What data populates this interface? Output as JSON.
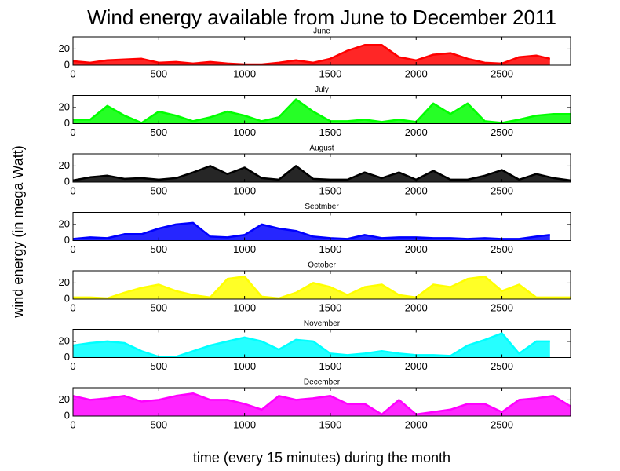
{
  "title": "Wind energy available from June to December 2011",
  "ylabel": "wind energy (in mega Watt)",
  "xlabel": "time (every 15 minutes) during the month",
  "chart_data": [
    {
      "type": "line",
      "title": "June",
      "xlim": [
        0,
        2900
      ],
      "xticks": [
        0,
        500,
        1000,
        1500,
        2000,
        2500
      ],
      "ylim": [
        0,
        35
      ],
      "yticks": [
        0,
        20
      ],
      "x": [
        0,
        100,
        200,
        300,
        400,
        500,
        600,
        700,
        800,
        900,
        1000,
        1100,
        1200,
        1300,
        1400,
        1500,
        1600,
        1700,
        1800,
        1900,
        2000,
        2100,
        2200,
        2300,
        2400,
        2500,
        2600,
        2700,
        2780
      ],
      "series": [
        {
          "color": "#ff0000",
          "values": [
            5,
            3,
            6,
            7,
            8,
            3,
            4,
            2,
            4,
            2,
            1,
            1,
            3,
            6,
            3,
            8,
            18,
            25,
            25,
            10,
            6,
            13,
            15,
            8,
            3,
            2,
            10,
            12,
            8
          ]
        }
      ]
    },
    {
      "type": "line",
      "title": "July",
      "xlim": [
        0,
        2900
      ],
      "xticks": [
        0,
        500,
        1000,
        1500,
        2000,
        2500
      ],
      "ylim": [
        0,
        35
      ],
      "yticks": [
        0,
        20
      ],
      "x": [
        0,
        100,
        200,
        300,
        400,
        500,
        600,
        700,
        800,
        900,
        1000,
        1100,
        1200,
        1300,
        1400,
        1500,
        1600,
        1700,
        1800,
        1900,
        2000,
        2100,
        2200,
        2300,
        2400,
        2500,
        2600,
        2700,
        2800,
        2900
      ],
      "series": [
        {
          "color": "#00ff00",
          "values": [
            5,
            5,
            22,
            10,
            1,
            15,
            10,
            3,
            8,
            15,
            10,
            3,
            8,
            30,
            15,
            3,
            3,
            5,
            2,
            5,
            2,
            25,
            12,
            25,
            3,
            1,
            5,
            10,
            12,
            12
          ]
        }
      ]
    },
    {
      "type": "line",
      "title": "August",
      "xlim": [
        0,
        2900
      ],
      "xticks": [
        0,
        500,
        1000,
        1500,
        2000,
        2500
      ],
      "ylim": [
        0,
        35
      ],
      "yticks": [
        0,
        20
      ],
      "x": [
        0,
        100,
        200,
        300,
        400,
        500,
        600,
        700,
        800,
        900,
        1000,
        1100,
        1200,
        1300,
        1400,
        1500,
        1600,
        1700,
        1800,
        1900,
        2000,
        2100,
        2200,
        2300,
        2400,
        2500,
        2600,
        2700,
        2800,
        2900
      ],
      "series": [
        {
          "color": "#000000",
          "values": [
            2,
            6,
            8,
            4,
            5,
            3,
            5,
            12,
            20,
            10,
            18,
            5,
            3,
            20,
            4,
            3,
            3,
            12,
            5,
            12,
            3,
            14,
            3,
            3,
            8,
            15,
            3,
            10,
            5,
            2
          ]
        }
      ]
    },
    {
      "type": "line",
      "title": "Septmber",
      "xlim": [
        0,
        2900
      ],
      "xticks": [
        0,
        500,
        1000,
        1500,
        2000,
        2500
      ],
      "ylim": [
        0,
        35
      ],
      "yticks": [
        0,
        20
      ],
      "x": [
        0,
        100,
        200,
        300,
        400,
        500,
        600,
        700,
        800,
        900,
        1000,
        1100,
        1200,
        1300,
        1400,
        1500,
        1600,
        1700,
        1800,
        1900,
        2000,
        2100,
        2200,
        2300,
        2400,
        2500,
        2600,
        2700,
        2780
      ],
      "series": [
        {
          "color": "#0000ff",
          "values": [
            2,
            4,
            3,
            8,
            8,
            15,
            20,
            22,
            5,
            4,
            7,
            20,
            15,
            12,
            5,
            3,
            2,
            7,
            3,
            4,
            4,
            3,
            3,
            2,
            3,
            2,
            2,
            5,
            7
          ]
        }
      ]
    },
    {
      "type": "line",
      "title": "October",
      "xlim": [
        0,
        2900
      ],
      "xticks": [
        0,
        500,
        1000,
        1500,
        2000,
        2500
      ],
      "ylim": [
        0,
        35
      ],
      "yticks": [
        0,
        20
      ],
      "x": [
        0,
        100,
        200,
        300,
        400,
        500,
        600,
        700,
        800,
        900,
        1000,
        1100,
        1200,
        1300,
        1400,
        1500,
        1600,
        1700,
        1800,
        1900,
        2000,
        2100,
        2200,
        2300,
        2400,
        2500,
        2600,
        2700,
        2800,
        2900
      ],
      "series": [
        {
          "color": "#ffff00",
          "values": [
            2,
            2,
            1,
            8,
            14,
            18,
            10,
            5,
            2,
            25,
            28,
            3,
            1,
            8,
            20,
            15,
            5,
            15,
            18,
            5,
            2,
            18,
            15,
            25,
            28,
            10,
            18,
            2,
            2,
            2
          ]
        }
      ]
    },
    {
      "type": "line",
      "title": "November",
      "xlim": [
        0,
        2900
      ],
      "xticks": [
        0,
        500,
        1000,
        1500,
        2000,
        2500
      ],
      "ylim": [
        0,
        35
      ],
      "yticks": [
        0,
        20
      ],
      "x": [
        0,
        100,
        200,
        300,
        400,
        500,
        600,
        700,
        800,
        900,
        1000,
        1100,
        1200,
        1300,
        1400,
        1500,
        1600,
        1700,
        1800,
        1900,
        2000,
        2100,
        2200,
        2300,
        2400,
        2500,
        2600,
        2700,
        2780
      ],
      "series": [
        {
          "color": "#00ffff",
          "values": [
            15,
            18,
            20,
            18,
            8,
            1,
            1,
            8,
            15,
            20,
            25,
            20,
            10,
            22,
            20,
            5,
            3,
            5,
            8,
            5,
            3,
            3,
            2,
            15,
            22,
            30,
            5,
            20,
            20
          ]
        }
      ]
    },
    {
      "type": "line",
      "title": "December",
      "xlim": [
        0,
        2900
      ],
      "xticks": [
        0,
        500,
        1000,
        1500,
        2000,
        2500
      ],
      "ylim": [
        0,
        35
      ],
      "yticks": [
        0,
        20
      ],
      "x": [
        0,
        100,
        200,
        300,
        400,
        500,
        600,
        700,
        800,
        900,
        1000,
        1100,
        1200,
        1300,
        1400,
        1500,
        1600,
        1700,
        1800,
        1900,
        2000,
        2100,
        2200,
        2300,
        2400,
        2500,
        2600,
        2700,
        2800,
        2900
      ],
      "series": [
        {
          "color": "#ff00ff",
          "values": [
            25,
            20,
            22,
            25,
            18,
            20,
            25,
            28,
            20,
            20,
            15,
            8,
            25,
            20,
            22,
            25,
            15,
            15,
            2,
            20,
            2,
            5,
            8,
            15,
            15,
            5,
            20,
            22,
            25,
            12
          ]
        }
      ]
    }
  ]
}
